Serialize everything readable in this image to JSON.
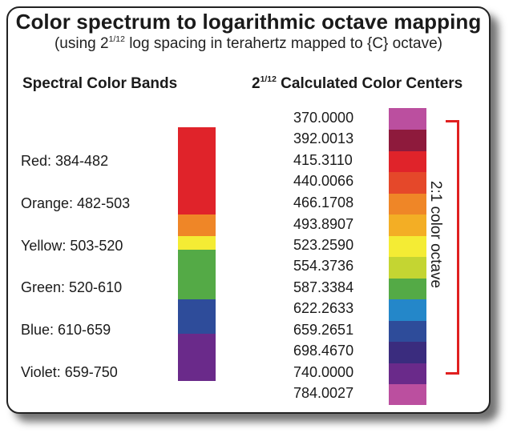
{
  "title": "Color spectrum to logarithmic octave mapping",
  "subtitle_prefix": "(using 2",
  "subtitle_sup": "1/12",
  "subtitle_suffix": " log spacing in terahertz mapped to {C} octave)",
  "left_header": "Spectral Color Bands",
  "right_header_base": "2",
  "right_header_sup": "1/12",
  "right_header_text": " Calculated Color Centers",
  "bands": [
    {
      "label": "Red: 384-482",
      "color": "#e0232a"
    },
    {
      "label": "Orange: 482-503",
      "color": "#ef8627"
    },
    {
      "label": "Yellow: 503-520",
      "color": "#f4ec34"
    },
    {
      "label": "Green: 520-610",
      "color": "#54aa46"
    },
    {
      "label": "Blue: 610-659",
      "color": "#2e4c9a"
    },
    {
      "label": "Violet: 659-750",
      "color": "#6a2a8a"
    }
  ],
  "centers": [
    {
      "value": "370.0000",
      "color": "#bb4f9f"
    },
    {
      "value": "392.0013",
      "color": "#8e1a3c"
    },
    {
      "value": "415.3110",
      "color": "#e0232a"
    },
    {
      "value": "440.0066",
      "color": "#e5482a"
    },
    {
      "value": "466.1708",
      "color": "#ef8627"
    },
    {
      "value": "493.8907",
      "color": "#f3ae25"
    },
    {
      "value": "523.2590",
      "color": "#f4ec34"
    },
    {
      "value": "554.3736",
      "color": "#c4d532"
    },
    {
      "value": "587.3384",
      "color": "#54aa46"
    },
    {
      "value": "622.2633",
      "color": "#2487c9"
    },
    {
      "value": "659.2651",
      "color": "#2e4c9a"
    },
    {
      "value": "698.4670",
      "color": "#3a2c7e"
    },
    {
      "value": "740.0000",
      "color": "#6a2a8a"
    },
    {
      "value": "784.0027",
      "color": "#bb4f9f"
    }
  ],
  "octave_label": "2:1 color octave",
  "bracket_color": "#e02020"
}
